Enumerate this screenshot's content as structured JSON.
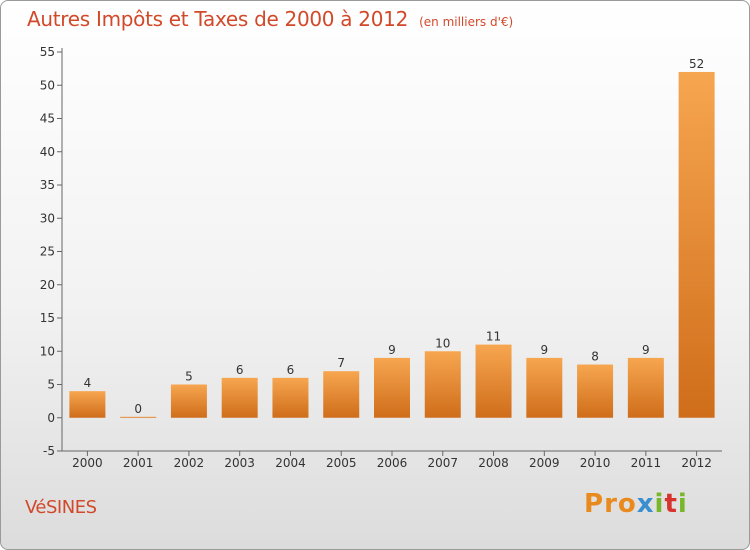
{
  "chart_data": {
    "type": "bar",
    "title": "Autres Impôts et Taxes de 2000 à 2012",
    "subtitle": "(en milliers d'€)",
    "categories": [
      "2000",
      "2001",
      "2002",
      "2003",
      "2004",
      "2005",
      "2006",
      "2007",
      "2008",
      "2009",
      "2010",
      "2011",
      "2012"
    ],
    "values": [
      4,
      0,
      5,
      6,
      6,
      7,
      9,
      10,
      11,
      9,
      8,
      9,
      52
    ],
    "ylim": [
      -5,
      55
    ],
    "yticks": [
      -5,
      0,
      5,
      10,
      15,
      20,
      25,
      30,
      35,
      40,
      45,
      50,
      55
    ],
    "grid": false,
    "bar_color": "#f0922e",
    "text_color": "#d2492a"
  },
  "footer": {
    "commune": "VéSINES",
    "logo_letters": [
      "P",
      "r",
      "o",
      "x",
      "i",
      "t",
      "i"
    ],
    "logo_colors": [
      "#e98a1f",
      "#e98a1f",
      "#e98a1f",
      "#3a8fd0",
      "#7ab62a",
      "#d8322c",
      "#7ab62a"
    ]
  }
}
